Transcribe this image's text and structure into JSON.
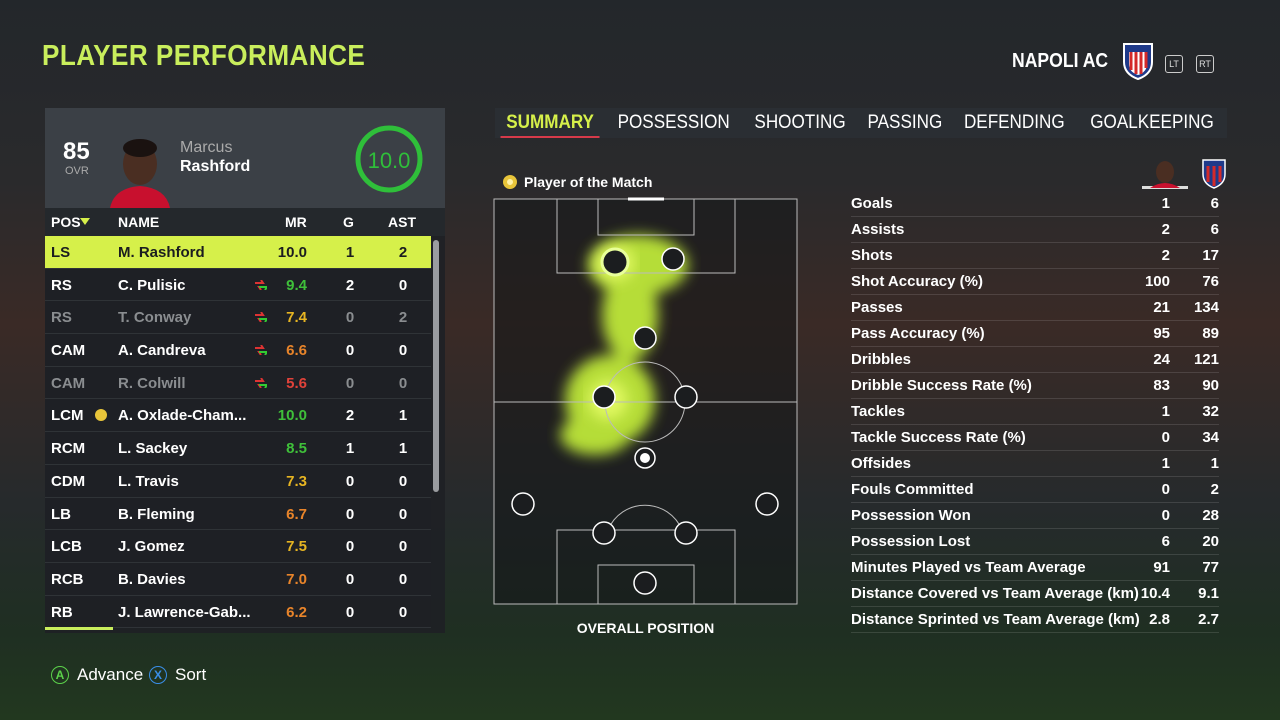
{
  "header": {
    "title": "PLAYER PERFORMANCE",
    "team": "NAPOLI AC",
    "lt": "LT",
    "rt": "RT"
  },
  "player_card": {
    "ovr": 85,
    "ovr_label": "OVR",
    "first_name": "Marcus",
    "last_name": "Rashford",
    "rating": "10.0"
  },
  "table": {
    "columns": [
      "POS",
      "NAME",
      "MR",
      "G",
      "AST"
    ],
    "rows": [
      {
        "pos": "LS",
        "name": "M. Rashford",
        "mr": "10.0",
        "g": 1,
        "ast": 2
      },
      {
        "pos": "RS",
        "name": "C. Pulisic",
        "mr": "9.4",
        "g": 2,
        "ast": 0
      },
      {
        "pos": "RS",
        "name": "T. Conway",
        "mr": "7.4",
        "g": 0,
        "ast": 2
      },
      {
        "pos": "CAM",
        "name": "A. Candreva",
        "mr": "6.6",
        "g": 0,
        "ast": 0
      },
      {
        "pos": "CAM",
        "name": "R. Colwill",
        "mr": "5.6",
        "g": 0,
        "ast": 0
      },
      {
        "pos": "LCM",
        "name": "A. Oxlade-Cham...",
        "mr": "10.0",
        "g": 2,
        "ast": 1
      },
      {
        "pos": "RCM",
        "name": "L. Sackey",
        "mr": "8.5",
        "g": 1,
        "ast": 1
      },
      {
        "pos": "CDM",
        "name": "L. Travis",
        "mr": "7.3",
        "g": 0,
        "ast": 0
      },
      {
        "pos": "LB",
        "name": "B. Fleming",
        "mr": "6.7",
        "g": 0,
        "ast": 0
      },
      {
        "pos": "LCB",
        "name": "J. Gomez",
        "mr": "7.5",
        "g": 0,
        "ast": 0
      },
      {
        "pos": "RCB",
        "name": "B. Davies",
        "mr": "7.0",
        "g": 0,
        "ast": 0
      },
      {
        "pos": "RB",
        "name": "J. Lawrence-Gab...",
        "mr": "6.2",
        "g": 0,
        "ast": 0
      }
    ]
  },
  "tabs": [
    "SUMMARY",
    "POSSESSION",
    "SHOOTING",
    "PASSING",
    "DEFENDING",
    "GOALKEEPING"
  ],
  "potm": "Player of the Match",
  "position_caption": "OVERALL POSITION",
  "stats": {
    "rows": [
      [
        "Goals",
        1,
        6
      ],
      [
        "Assists",
        2,
        6
      ],
      [
        "Shots",
        2,
        17
      ],
      [
        "Shot Accuracy (%)",
        100,
        76
      ],
      [
        "Passes",
        21,
        134
      ],
      [
        "Pass Accuracy (%)",
        95,
        89
      ],
      [
        "Dribbles",
        24,
        121
      ],
      [
        "Dribble Success Rate (%)",
        83,
        90
      ],
      [
        "Tackles",
        1,
        32
      ],
      [
        "Tackle Success Rate (%)",
        0,
        34
      ],
      [
        "Offsides",
        1,
        1
      ],
      [
        "Fouls Committed",
        0,
        2
      ],
      [
        "Possession Won",
        0,
        28
      ],
      [
        "Possession Lost",
        6,
        20
      ],
      [
        "Minutes Played vs Team Average",
        91,
        77
      ],
      [
        "Distance Covered vs Team Average (km)",
        10.4,
        9.1
      ],
      [
        "Distance Sprinted vs Team Average (km)",
        2.8,
        2.7
      ]
    ]
  },
  "footer": {
    "a": "A",
    "advance": "Advance",
    "x": "X",
    "sort": "Sort"
  }
}
